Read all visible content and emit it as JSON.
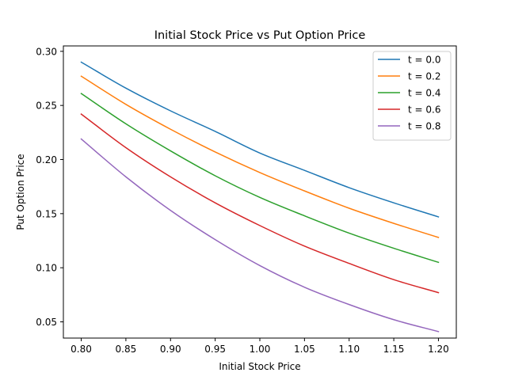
{
  "chart_data": {
    "type": "line",
    "title": "Initial Stock Price vs Put Option Price",
    "xlabel": "Initial Stock Price",
    "ylabel": "Put Option Price",
    "xlim": [
      0.78,
      1.22
    ],
    "ylim": [
      0.035,
      0.305
    ],
    "xticks": [
      "0.80",
      "0.85",
      "0.90",
      "0.95",
      "1.00",
      "1.05",
      "1.10",
      "1.15",
      "1.20"
    ],
    "yticks": [
      "0.05",
      "0.10",
      "0.15",
      "0.20",
      "0.25",
      "0.30"
    ],
    "grid": false,
    "legend_position": "top-right",
    "x": [
      0.8,
      0.85,
      0.9,
      0.95,
      1.0,
      1.05,
      1.1,
      1.15,
      1.2
    ],
    "series": [
      {
        "name": "t = 0.0",
        "color": "#1f77b4",
        "values": [
          0.29,
          0.266,
          0.245,
          0.226,
          0.206,
          0.19,
          0.174,
          0.16,
          0.147
        ]
      },
      {
        "name": "t = 0.2",
        "color": "#ff7f0e",
        "values": [
          0.277,
          0.251,
          0.228,
          0.207,
          0.188,
          0.171,
          0.155,
          0.141,
          0.128
        ]
      },
      {
        "name": "t = 0.4",
        "color": "#2ca02c",
        "values": [
          0.261,
          0.233,
          0.208,
          0.185,
          0.165,
          0.148,
          0.132,
          0.118,
          0.105
        ]
      },
      {
        "name": "t = 0.6",
        "color": "#d62728",
        "values": [
          0.242,
          0.211,
          0.184,
          0.16,
          0.139,
          0.12,
          0.104,
          0.089,
          0.077
        ]
      },
      {
        "name": "t = 0.8",
        "color": "#9467bd",
        "values": [
          0.219,
          0.184,
          0.153,
          0.126,
          0.102,
          0.082,
          0.066,
          0.052,
          0.041
        ]
      }
    ]
  }
}
